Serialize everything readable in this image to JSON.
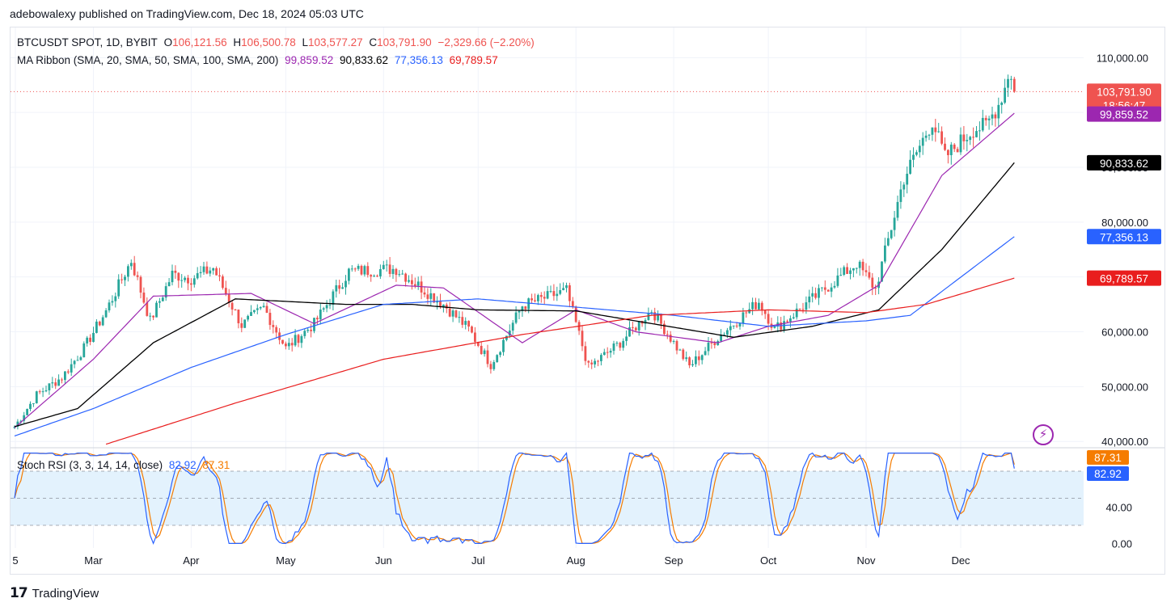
{
  "publisher_line": "adebowalexy published on TradingView.com, Dec 18, 2024 05:03 UTC",
  "legend": {
    "symbol": "BTCUSDT SPOT, 1D, BYBIT",
    "open_label": "O",
    "open": "106,121.56",
    "high_label": "H",
    "high": "106,500.78",
    "low_label": "L",
    "low": "103,577.27",
    "close_label": "C",
    "close": "103,791.90",
    "change": "−2,329.66 (−2.20%)",
    "ma_title": "MA Ribbon (SMA, 20, SMA, 50, SMA, 100, SMA, 200)",
    "ma20": "99,859.52",
    "ma50": "90,833.62",
    "ma100": "77,356.13",
    "ma200": "69,789.57",
    "stoch_title": "Stoch RSI (3, 3, 14, 14, close)",
    "stoch_k": "82.92",
    "stoch_d": "87.31"
  },
  "price_tags": {
    "last": "103,791.90",
    "countdown": "18:56:47",
    "ma20": "99,859.52",
    "ma50": "90,833.62",
    "ma100": "77,356.13",
    "ma200": "69,789.57",
    "stoch_d": "87.31",
    "stoch_k": "82.92"
  },
  "footer": {
    "brand": "TradingView",
    "logo": "tradingview-logo"
  },
  "colors": {
    "up": "#26a69a",
    "down": "#ef5350",
    "ma20": "#9c27b0",
    "ma50": "#000000",
    "ma100": "#2962ff",
    "ma200": "#e91e1e",
    "stoch_k": "#2962ff",
    "stoch_d": "#f57c00",
    "stoch_band": "#e3f2fd"
  },
  "chart_data": [
    {
      "type": "candlestick",
      "title": "BTCUSDT SPOT, 1D, BYBIT",
      "x_labels": [
        "5",
        "Mar",
        "Apr",
        "May",
        "Jun",
        "Jul",
        "Aug",
        "Sep",
        "Oct",
        "Nov",
        "Dec"
      ],
      "y_ticks": [
        40000,
        50000,
        60000,
        70000,
        80000,
        90000,
        100000,
        110000
      ],
      "y_tick_labels": [
        "40,000.00",
        "50,000.00",
        "60,000.00",
        "70,000.00",
        "80,000.00",
        "90,000.00",
        "100,000.00",
        "110,000.00"
      ],
      "ylim": [
        39000,
        115500
      ],
      "grid": true,
      "price_path_keypoints": [
        {
          "date": "2024-02-05",
          "close": 42700
        },
        {
          "date": "2024-02-12",
          "close": 48500
        },
        {
          "date": "2024-02-20",
          "close": 51700
        },
        {
          "date": "2024-02-27",
          "close": 57000
        },
        {
          "date": "2024-03-05",
          "close": 63800
        },
        {
          "date": "2024-03-13",
          "close": 73000
        },
        {
          "date": "2024-03-19",
          "close": 62000
        },
        {
          "date": "2024-03-26",
          "close": 70500
        },
        {
          "date": "2024-04-01",
          "close": 69700
        },
        {
          "date": "2024-04-08",
          "close": 71600
        },
        {
          "date": "2024-04-17",
          "close": 61200
        },
        {
          "date": "2024-04-24",
          "close": 64400
        },
        {
          "date": "2024-05-01",
          "close": 57000
        },
        {
          "date": "2024-05-10",
          "close": 61500
        },
        {
          "date": "2024-05-21",
          "close": 71000
        },
        {
          "date": "2024-06-05",
          "close": 71500
        },
        {
          "date": "2024-06-20",
          "close": 65000
        },
        {
          "date": "2024-06-28",
          "close": 60500
        },
        {
          "date": "2024-07-05",
          "close": 54000
        },
        {
          "date": "2024-07-15",
          "close": 64800
        },
        {
          "date": "2024-07-29",
          "close": 67500
        },
        {
          "date": "2024-08-05",
          "close": 53500
        },
        {
          "date": "2024-08-15",
          "close": 58000
        },
        {
          "date": "2024-08-25",
          "close": 64000
        },
        {
          "date": "2024-09-06",
          "close": 53700
        },
        {
          "date": "2024-09-15",
          "close": 59000
        },
        {
          "date": "2024-09-28",
          "close": 65500
        },
        {
          "date": "2024-10-03",
          "close": 60500
        },
        {
          "date": "2024-10-15",
          "close": 66000
        },
        {
          "date": "2024-10-29",
          "close": 72500
        },
        {
          "date": "2024-11-04",
          "close": 67800
        },
        {
          "date": "2024-11-13",
          "close": 88000
        },
        {
          "date": "2024-11-22",
          "close": 98500
        },
        {
          "date": "2024-11-26",
          "close": 91800
        },
        {
          "date": "2024-12-05",
          "close": 97000
        },
        {
          "date": "2024-12-09",
          "close": 97500
        },
        {
          "date": "2024-12-13",
          "close": 101500
        },
        {
          "date": "2024-12-16",
          "close": 106100
        },
        {
          "date": "2024-12-17",
          "close": 106100
        },
        {
          "date": "2024-12-18",
          "close": 103791.9
        }
      ],
      "last_bar": {
        "open": 106121.56,
        "high": 106500.78,
        "low": 103577.27,
        "close": 103791.9
      },
      "moving_averages": [
        {
          "name": "SMA 20",
          "last": 99859.52,
          "keypoints": [
            [
              "2024-02-05",
              42500
            ],
            [
              "2024-03-01",
              55000
            ],
            [
              "2024-03-20",
              66500
            ],
            [
              "2024-04-20",
              67000
            ],
            [
              "2024-05-10",
              61500
            ],
            [
              "2024-06-05",
              68500
            ],
            [
              "2024-06-20",
              68000
            ],
            [
              "2024-07-15",
              58000
            ],
            [
              "2024-08-01",
              64000
            ],
            [
              "2024-08-20",
              60000
            ],
            [
              "2024-09-15",
              58000
            ],
            [
              "2024-10-01",
              61000
            ],
            [
              "2024-10-20",
              63000
            ],
            [
              "2024-11-05",
              68500
            ],
            [
              "2024-11-25",
              88500
            ],
            [
              "2024-12-18",
              99859.52
            ]
          ]
        },
        {
          "name": "SMA 50",
          "last": 90833.62,
          "keypoints": [
            [
              "2024-02-05",
              42700
            ],
            [
              "2024-02-25",
              46000
            ],
            [
              "2024-03-20",
              58000
            ],
            [
              "2024-04-15",
              66000
            ],
            [
              "2024-05-20",
              65000
            ],
            [
              "2024-06-10",
              65000
            ],
            [
              "2024-07-01",
              64000
            ],
            [
              "2024-08-01",
              63800
            ],
            [
              "2024-08-25",
              61500
            ],
            [
              "2024-09-20",
              59000
            ],
            [
              "2024-10-15",
              61000
            ],
            [
              "2024-11-05",
              64000
            ],
            [
              "2024-11-25",
              75000
            ],
            [
              "2024-12-18",
              90833.62
            ]
          ]
        },
        {
          "name": "SMA 100",
          "last": 77356.13,
          "keypoints": [
            [
              "2024-02-05",
              41000
            ],
            [
              "2024-03-01",
              46000
            ],
            [
              "2024-04-01",
              53500
            ],
            [
              "2024-05-01",
              59500
            ],
            [
              "2024-06-01",
              65000
            ],
            [
              "2024-07-01",
              66000
            ],
            [
              "2024-08-01",
              64500
            ],
            [
              "2024-09-01",
              63000
            ],
            [
              "2024-10-01",
              61000
            ],
            [
              "2024-11-01",
              62000
            ],
            [
              "2024-11-15",
              63000
            ],
            [
              "2024-12-18",
              77356.13
            ]
          ]
        },
        {
          "name": "SMA 200",
          "last": 69789.57,
          "keypoints": [
            [
              "2024-03-05",
              39500
            ],
            [
              "2024-04-15",
              47000
            ],
            [
              "2024-06-01",
              55000
            ],
            [
              "2024-07-15",
              59500
            ],
            [
              "2024-08-25",
              63000
            ],
            [
              "2024-10-01",
              64000
            ],
            [
              "2024-11-01",
              63500
            ],
            [
              "2024-11-20",
              65000
            ],
            [
              "2024-12-18",
              69789.57
            ]
          ]
        }
      ]
    },
    {
      "type": "line",
      "title": "Stoch RSI (3, 3, 14, 14, close)",
      "y_ticks": [
        0,
        40
      ],
      "y_tick_labels": [
        "0.00",
        "40.00"
      ],
      "ylim": [
        -5,
        105
      ],
      "bands": {
        "upper": 80,
        "middle": 50,
        "lower": 20
      },
      "series": [
        {
          "name": "K",
          "last": 82.92
        },
        {
          "name": "D",
          "last": 87.31
        }
      ]
    }
  ]
}
